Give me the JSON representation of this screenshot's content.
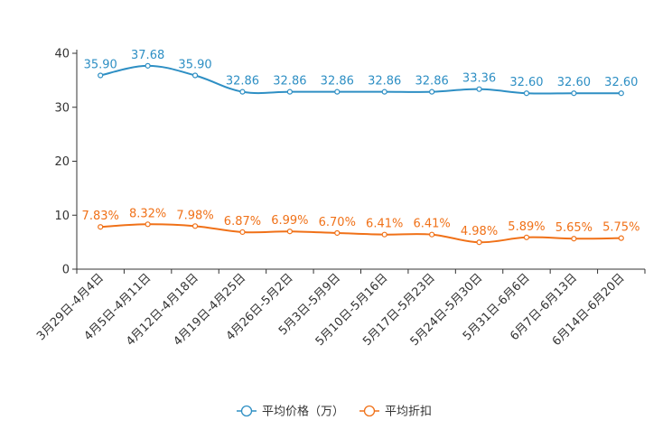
{
  "chart_data": {
    "type": "line",
    "title": "",
    "xlabel": "",
    "ylabel": "",
    "ylim": [
      0,
      40
    ],
    "yticks": [
      0,
      10,
      20,
      30,
      40
    ],
    "categories": [
      "3月29日-4月4日",
      "4月5日-4月11日",
      "4月12日-4月18日",
      "4月19日-4月25日",
      "4月26日-5月2日",
      "5月3日-5月9日",
      "5月10日-5月16日",
      "5月17日-5月23日",
      "5月24日-5月30日",
      "5月31日-6月6日",
      "6月7日-6月13日",
      "6月14日-6月20日"
    ],
    "series": [
      {
        "name": "平均价格（万）",
        "color": "#2e8fc4",
        "values": [
          35.9,
          37.68,
          35.9,
          32.86,
          32.86,
          32.86,
          32.86,
          32.86,
          33.36,
          32.6,
          32.6,
          32.6
        ],
        "labels": [
          "35.90",
          "37.68",
          "35.90",
          "32.86",
          "32.86",
          "32.86",
          "32.86",
          "32.86",
          "33.36",
          "32.60",
          "32.60",
          "32.60"
        ]
      },
      {
        "name": "平均折扣",
        "color": "#f07118",
        "values": [
          7.83,
          8.32,
          7.98,
          6.87,
          6.99,
          6.7,
          6.41,
          6.41,
          4.98,
          5.89,
          5.65,
          5.75
        ],
        "labels": [
          "7.83%",
          "8.32%",
          "7.98%",
          "6.87%",
          "6.99%",
          "6.70%",
          "6.41%",
          "6.41%",
          "4.98%",
          "5.89%",
          "5.65%",
          "5.75%"
        ]
      }
    ],
    "legend_position": "bottom-center",
    "grid": false
  }
}
